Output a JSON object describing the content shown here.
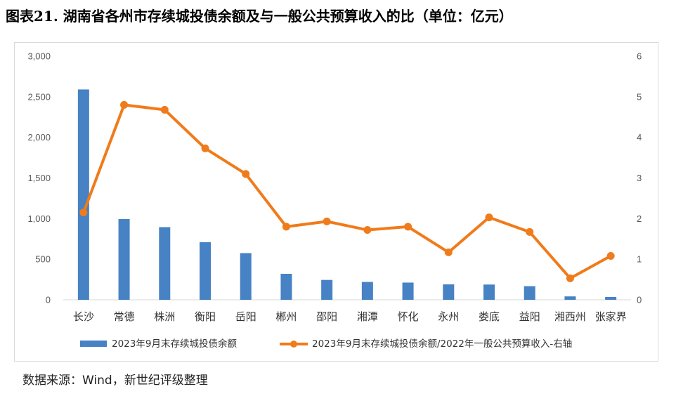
{
  "title": "图表21. 湖南省各州市存续城投债余额及与一般公共预算收入的比（单位：亿元）",
  "source": "数据来源：Wind，新世纪评级整理",
  "chart_data": {
    "type": "bar+line",
    "categories": [
      "长沙",
      "常德",
      "株洲",
      "衡阳",
      "岳阳",
      "郴州",
      "邵阳",
      "湘潭",
      "怀化",
      "永州",
      "娄底",
      "益阳",
      "湘西州",
      "张家界"
    ],
    "series": [
      {
        "name": "2023年9月末存续城投债余额",
        "type": "bar",
        "axis": "left",
        "color": "#4682c4",
        "values": [
          2590,
          995,
          895,
          710,
          575,
          320,
          245,
          220,
          212,
          190,
          188,
          168,
          42,
          35
        ]
      },
      {
        "name": "2023年9月末存续城投债余额/2022年一般公共预算收入-右轴",
        "type": "line",
        "axis": "right",
        "color": "#f07b1a",
        "values": [
          2.15,
          4.8,
          4.68,
          3.73,
          3.1,
          1.8,
          1.93,
          1.72,
          1.8,
          1.17,
          2.03,
          1.67,
          0.53,
          1.08
        ]
      }
    ],
    "y_left": {
      "min": 0,
      "max": 3000,
      "ticks": [
        "0",
        "500",
        "1,000",
        "1,500",
        "2,000",
        "2,500",
        "3,000"
      ]
    },
    "y_right": {
      "min": 0,
      "max": 6,
      "ticks": [
        "0",
        "1",
        "2",
        "3",
        "4",
        "5",
        "6"
      ]
    },
    "legend_position": "bottom",
    "grid": false
  }
}
